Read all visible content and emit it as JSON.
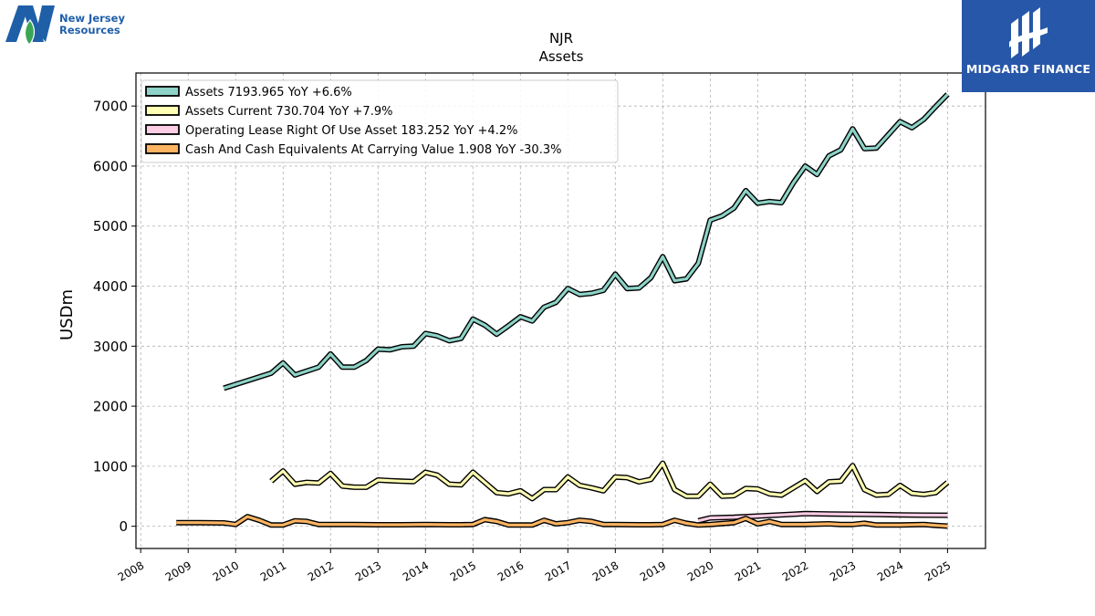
{
  "branding": {
    "left_logo_text_line1": "New Jersey",
    "left_logo_text_line2": "Resources",
    "right_logo_text": "MIDGARD FINANCE",
    "left_logo_icon": "njr-n-leaf-icon",
    "right_logo_icon": "midgard-emblem-icon",
    "brand_blue": "#1f5fa8",
    "panel_blue": "#2757a9"
  },
  "chart_data": {
    "type": "line",
    "title": "NJR",
    "subtitle": "Assets",
    "xlabel": "",
    "ylabel": "USDm",
    "xlim": [
      2007.9,
      2025.8
    ],
    "ylim": [
      -370,
      7550
    ],
    "x_ticks": [
      2008,
      2009,
      2010,
      2011,
      2012,
      2013,
      2014,
      2015,
      2016,
      2017,
      2018,
      2019,
      2020,
      2021,
      2022,
      2023,
      2024,
      2025
    ],
    "y_ticks": [
      0,
      1000,
      2000,
      3000,
      4000,
      5000,
      6000,
      7000
    ],
    "grid": true,
    "legend_position": "top-left",
    "series": [
      {
        "name": "Assets  7193.965 YoY +6.6%",
        "color": "#8dd3c7",
        "points": [
          [
            2009.75,
            2300
          ],
          [
            2010.75,
            2550
          ],
          [
            2011.0,
            2720
          ],
          [
            2011.25,
            2520
          ],
          [
            2011.75,
            2650
          ],
          [
            2012.0,
            2870
          ],
          [
            2012.25,
            2650
          ],
          [
            2012.5,
            2650
          ],
          [
            2012.75,
            2760
          ],
          [
            2013.0,
            2950
          ],
          [
            2013.25,
            2940
          ],
          [
            2013.5,
            2990
          ],
          [
            2013.75,
            3000
          ],
          [
            2014.0,
            3210
          ],
          [
            2014.25,
            3170
          ],
          [
            2014.5,
            3090
          ],
          [
            2014.75,
            3130
          ],
          [
            2015.0,
            3450
          ],
          [
            2015.25,
            3350
          ],
          [
            2015.5,
            3200
          ],
          [
            2015.75,
            3340
          ],
          [
            2016.0,
            3490
          ],
          [
            2016.25,
            3420
          ],
          [
            2016.5,
            3650
          ],
          [
            2016.75,
            3730
          ],
          [
            2017.0,
            3960
          ],
          [
            2017.25,
            3860
          ],
          [
            2017.5,
            3880
          ],
          [
            2017.75,
            3930
          ],
          [
            2018.0,
            4200
          ],
          [
            2018.25,
            3960
          ],
          [
            2018.5,
            3970
          ],
          [
            2018.75,
            4140
          ],
          [
            2019.0,
            4490
          ],
          [
            2019.25,
            4090
          ],
          [
            2019.5,
            4120
          ],
          [
            2019.75,
            4380
          ],
          [
            2020.0,
            5100
          ],
          [
            2020.25,
            5170
          ],
          [
            2020.5,
            5300
          ],
          [
            2020.75,
            5590
          ],
          [
            2021.0,
            5380
          ],
          [
            2021.25,
            5410
          ],
          [
            2021.5,
            5390
          ],
          [
            2021.75,
            5720
          ],
          [
            2022.0,
            6000
          ],
          [
            2022.25,
            5860
          ],
          [
            2022.5,
            6170
          ],
          [
            2022.75,
            6270
          ],
          [
            2023.0,
            6620
          ],
          [
            2023.25,
            6290
          ],
          [
            2023.5,
            6300
          ],
          [
            2023.75,
            6520
          ],
          [
            2024.0,
            6740
          ],
          [
            2024.25,
            6640
          ],
          [
            2024.5,
            6780
          ],
          [
            2024.75,
            6990
          ],
          [
            2025.0,
            7194
          ]
        ]
      },
      {
        "name": "Assets Current  730.704 YoY +7.9%",
        "color": "#ffffb3",
        "points": [
          [
            2010.75,
            750
          ],
          [
            2011.0,
            920
          ],
          [
            2011.25,
            700
          ],
          [
            2011.5,
            730
          ],
          [
            2011.75,
            720
          ],
          [
            2012.0,
            880
          ],
          [
            2012.25,
            670
          ],
          [
            2012.5,
            650
          ],
          [
            2012.75,
            650
          ],
          [
            2013.0,
            770
          ],
          [
            2013.25,
            760
          ],
          [
            2013.5,
            750
          ],
          [
            2013.75,
            745
          ],
          [
            2014.0,
            900
          ],
          [
            2014.25,
            850
          ],
          [
            2014.5,
            700
          ],
          [
            2014.75,
            690
          ],
          [
            2015.0,
            900
          ],
          [
            2015.25,
            730
          ],
          [
            2015.5,
            560
          ],
          [
            2015.75,
            540
          ],
          [
            2016.0,
            590
          ],
          [
            2016.25,
            460
          ],
          [
            2016.5,
            610
          ],
          [
            2016.75,
            610
          ],
          [
            2017.0,
            820
          ],
          [
            2017.25,
            680
          ],
          [
            2017.5,
            640
          ],
          [
            2017.75,
            590
          ],
          [
            2018.0,
            820
          ],
          [
            2018.25,
            810
          ],
          [
            2018.5,
            740
          ],
          [
            2018.75,
            780
          ],
          [
            2019.0,
            1050
          ],
          [
            2019.25,
            610
          ],
          [
            2019.5,
            500
          ],
          [
            2019.75,
            500
          ],
          [
            2020.0,
            700
          ],
          [
            2020.25,
            500
          ],
          [
            2020.5,
            510
          ],
          [
            2020.75,
            630
          ],
          [
            2021.0,
            620
          ],
          [
            2021.25,
            540
          ],
          [
            2021.5,
            520
          ],
          [
            2021.75,
            640
          ],
          [
            2022.0,
            760
          ],
          [
            2022.25,
            580
          ],
          [
            2022.5,
            740
          ],
          [
            2022.75,
            750
          ],
          [
            2023.0,
            1010
          ],
          [
            2023.25,
            610
          ],
          [
            2023.5,
            520
          ],
          [
            2023.75,
            530
          ],
          [
            2024.0,
            680
          ],
          [
            2024.25,
            550
          ],
          [
            2024.5,
            530
          ],
          [
            2024.75,
            560
          ],
          [
            2025.0,
            731
          ]
        ]
      },
      {
        "name": "Operating Lease Right Of Use Asset  183.252 YoY +4.2%",
        "color": "#fccde5",
        "points": [
          [
            2019.75,
            90
          ],
          [
            2020.0,
            140
          ],
          [
            2020.5,
            150
          ],
          [
            2021.0,
            170
          ],
          [
            2021.75,
            200
          ],
          [
            2022.0,
            210
          ],
          [
            2022.5,
            205
          ],
          [
            2023.0,
            200
          ],
          [
            2023.5,
            195
          ],
          [
            2024.0,
            190
          ],
          [
            2024.5,
            185
          ],
          [
            2025.0,
            183
          ]
        ]
      },
      {
        "name": "Cash And Cash Equivalents At Carrying Value  1.908 YoY -30.3%",
        "color": "#fdb462",
        "points": [
          [
            2008.75,
            60
          ],
          [
            2009.25,
            60
          ],
          [
            2009.75,
            55
          ],
          [
            2010.0,
            30
          ],
          [
            2010.25,
            160
          ],
          [
            2010.5,
            100
          ],
          [
            2010.75,
            20
          ],
          [
            2011.0,
            20
          ],
          [
            2011.25,
            90
          ],
          [
            2011.5,
            80
          ],
          [
            2011.75,
            30
          ],
          [
            2012.0,
            30
          ],
          [
            2012.5,
            30
          ],
          [
            2013.0,
            25
          ],
          [
            2013.5,
            25
          ],
          [
            2014.0,
            30
          ],
          [
            2014.5,
            25
          ],
          [
            2014.75,
            25
          ],
          [
            2015.0,
            30
          ],
          [
            2015.25,
            110
          ],
          [
            2015.5,
            80
          ],
          [
            2015.75,
            20
          ],
          [
            2016.0,
            20
          ],
          [
            2016.25,
            20
          ],
          [
            2016.5,
            100
          ],
          [
            2016.75,
            40
          ],
          [
            2017.0,
            60
          ],
          [
            2017.25,
            100
          ],
          [
            2017.5,
            80
          ],
          [
            2017.75,
            30
          ],
          [
            2018.0,
            30
          ],
          [
            2018.5,
            25
          ],
          [
            2018.75,
            25
          ],
          [
            2019.0,
            30
          ],
          [
            2019.25,
            100
          ],
          [
            2019.5,
            50
          ],
          [
            2019.75,
            20
          ],
          [
            2020.0,
            30
          ],
          [
            2020.5,
            60
          ],
          [
            2020.75,
            130
          ],
          [
            2021.0,
            40
          ],
          [
            2021.25,
            80
          ],
          [
            2021.5,
            30
          ],
          [
            2021.75,
            30
          ],
          [
            2022.0,
            30
          ],
          [
            2022.5,
            40
          ],
          [
            2022.75,
            30
          ],
          [
            2023.0,
            30
          ],
          [
            2023.25,
            50
          ],
          [
            2023.5,
            20
          ],
          [
            2023.75,
            20
          ],
          [
            2024.0,
            20
          ],
          [
            2024.5,
            30
          ],
          [
            2024.75,
            15
          ],
          [
            2025.0,
            2
          ]
        ]
      }
    ]
  }
}
